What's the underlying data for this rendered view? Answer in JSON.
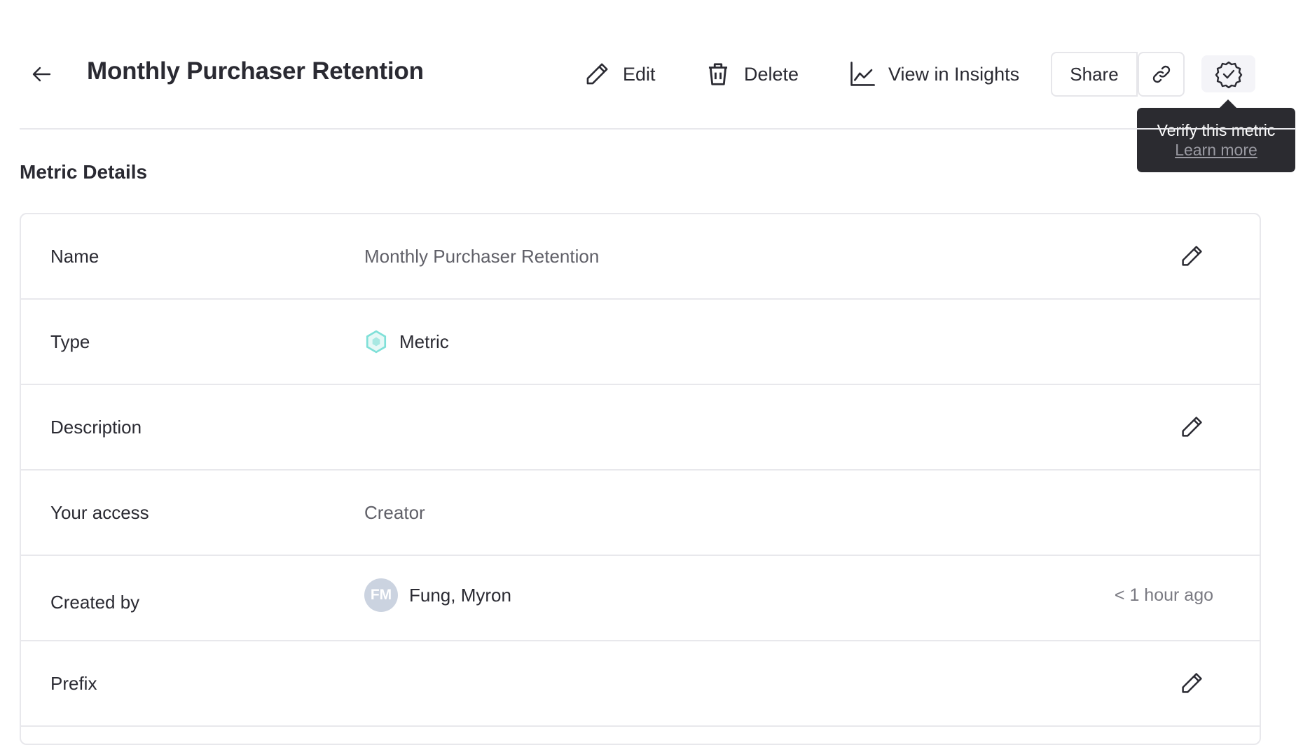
{
  "header": {
    "title": "Monthly Purchaser Retention",
    "back_icon": "arrow-left-icon",
    "actions": {
      "edit_label": "Edit",
      "delete_label": "Delete",
      "insights_label": "View in Insights",
      "share_label": "Share"
    },
    "verify_tooltip": {
      "text": "Verify this metric",
      "link": "Learn more"
    }
  },
  "section": {
    "title": "Metric Details"
  },
  "details": {
    "name": {
      "label": "Name",
      "value": "Monthly Purchaser Retention"
    },
    "type": {
      "label": "Type",
      "value": "Metric",
      "icon": "hexagon-metric-icon",
      "icon_color": "#7fe0d8"
    },
    "description": {
      "label": "Description",
      "value": ""
    },
    "access": {
      "label": "Your access",
      "value": "Creator"
    },
    "created_by": {
      "label": "Created by",
      "initials": "FM",
      "value": "Fung, Myron",
      "time": "< 1 hour ago"
    },
    "prefix": {
      "label": "Prefix",
      "value": ""
    }
  }
}
